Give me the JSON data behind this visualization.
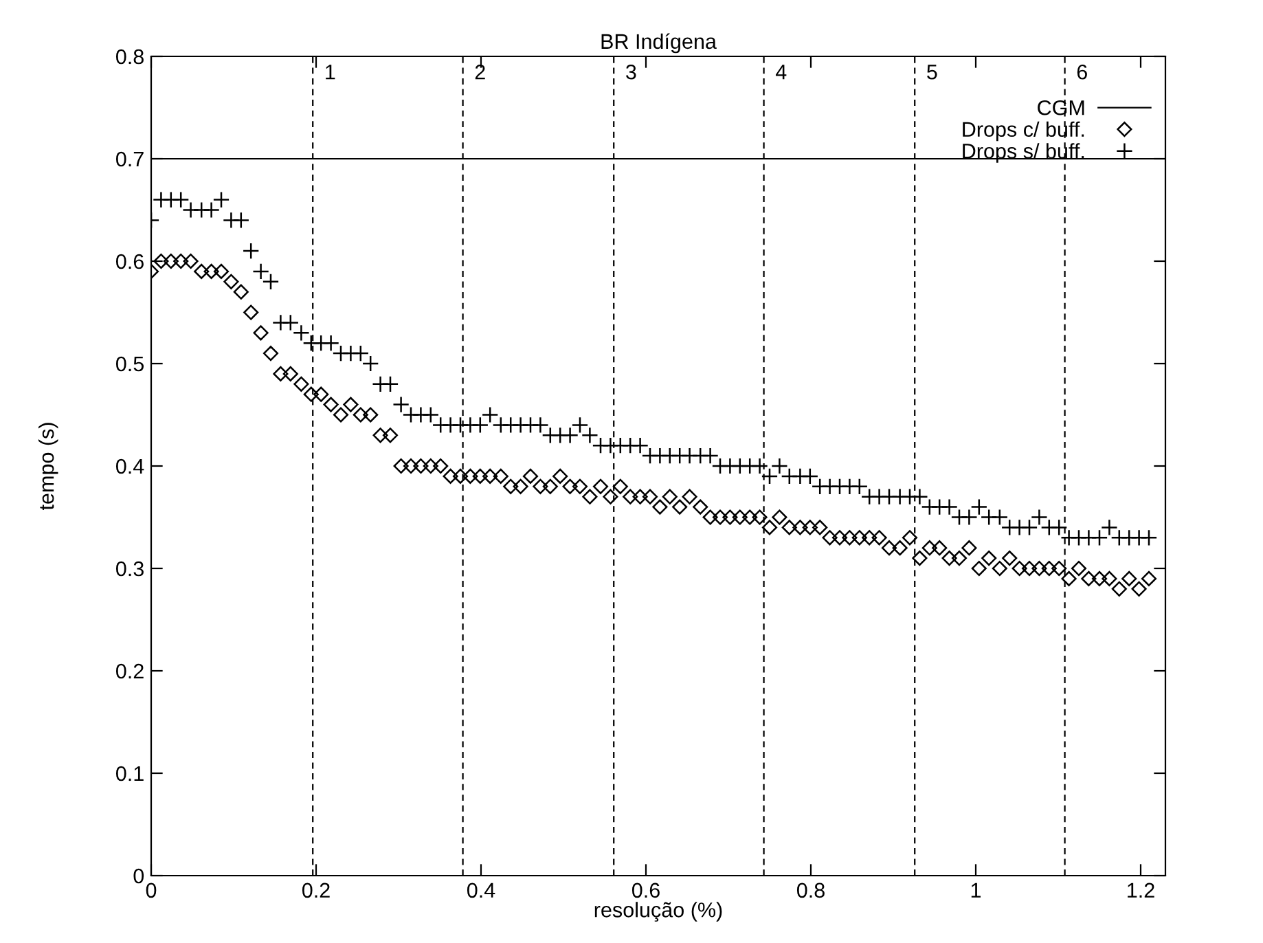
{
  "chart_data": {
    "type": "scatter",
    "title": "BR Indígena",
    "xlabel": "resolução (%)",
    "ylabel": "tempo (s)",
    "x": [
      0.0,
      0.012,
      0.024,
      0.036,
      0.048,
      0.061,
      0.073,
      0.085,
      0.097,
      0.109,
      0.121,
      0.133,
      0.145,
      0.157,
      0.169,
      0.182,
      0.194,
      0.206,
      0.218,
      0.23,
      0.242,
      0.254,
      0.266,
      0.278,
      0.29,
      0.303,
      0.315,
      0.327,
      0.339,
      0.351,
      0.363,
      0.375,
      0.387,
      0.399,
      0.411,
      0.424,
      0.436,
      0.448,
      0.46,
      0.472,
      0.484,
      0.496,
      0.508,
      0.52,
      0.532,
      0.545,
      0.557,
      0.569,
      0.581,
      0.593,
      0.605,
      0.617,
      0.629,
      0.641,
      0.653,
      0.666,
      0.678,
      0.69,
      0.702,
      0.714,
      0.726,
      0.738,
      0.75,
      0.762,
      0.774,
      0.787,
      0.799,
      0.811,
      0.823,
      0.835,
      0.847,
      0.859,
      0.871,
      0.883,
      0.895,
      0.908,
      0.92,
      0.932,
      0.944,
      0.956,
      0.968,
      0.98,
      0.992,
      1.004,
      1.016,
      1.029,
      1.041,
      1.053,
      1.065,
      1.077,
      1.089,
      1.101,
      1.113,
      1.125,
      1.137,
      1.15,
      1.162,
      1.174,
      1.186,
      1.198,
      1.21
    ],
    "series": [
      {
        "name": "CGM",
        "type": "line",
        "color": "#000000",
        "x": [
          0.0,
          1.23
        ],
        "values": [
          0.7,
          0.7
        ],
        "marker": "none"
      },
      {
        "name": "Drops c/ buff.",
        "color": "#000000",
        "marker": "diamond",
        "values": [
          0.59,
          0.6,
          0.6,
          0.6,
          0.6,
          0.59,
          0.59,
          0.59,
          0.58,
          0.57,
          0.55,
          0.53,
          0.51,
          0.49,
          0.49,
          0.48,
          0.47,
          0.47,
          0.46,
          0.45,
          0.46,
          0.45,
          0.45,
          0.43,
          0.43,
          0.4,
          0.4,
          0.4,
          0.4,
          0.4,
          0.39,
          0.39,
          0.39,
          0.39,
          0.39,
          0.39,
          0.38,
          0.38,
          0.39,
          0.38,
          0.38,
          0.39,
          0.38,
          0.38,
          0.37,
          0.38,
          0.37,
          0.38,
          0.37,
          0.37,
          0.37,
          0.36,
          0.37,
          0.36,
          0.37,
          0.36,
          0.35,
          0.35,
          0.35,
          0.35,
          0.35,
          0.35,
          0.34,
          0.35,
          0.34,
          0.34,
          0.34,
          0.34,
          0.33,
          0.33,
          0.33,
          0.33,
          0.33,
          0.33,
          0.32,
          0.32,
          0.33,
          0.31,
          0.32,
          0.32,
          0.31,
          0.31,
          0.32,
          0.3,
          0.31,
          0.3,
          0.31,
          0.3,
          0.3,
          0.3,
          0.3,
          0.3,
          0.29,
          0.3,
          0.29,
          0.29,
          0.29,
          0.28,
          0.29,
          0.28,
          0.29
        ]
      },
      {
        "name": "Drops s/ buff.",
        "color": "#000000",
        "marker": "cross",
        "values": [
          0.64,
          0.66,
          0.66,
          0.66,
          0.65,
          0.65,
          0.65,
          0.66,
          0.64,
          0.64,
          0.61,
          0.59,
          0.58,
          0.54,
          0.54,
          0.53,
          0.52,
          0.52,
          0.52,
          0.51,
          0.51,
          0.51,
          0.5,
          0.48,
          0.48,
          0.46,
          0.45,
          0.45,
          0.45,
          0.44,
          0.44,
          0.44,
          0.44,
          0.44,
          0.45,
          0.44,
          0.44,
          0.44,
          0.44,
          0.44,
          0.43,
          0.43,
          0.43,
          0.44,
          0.43,
          0.42,
          0.42,
          0.42,
          0.42,
          0.42,
          0.41,
          0.41,
          0.41,
          0.41,
          0.41,
          0.41,
          0.41,
          0.4,
          0.4,
          0.4,
          0.4,
          0.4,
          0.39,
          0.4,
          0.39,
          0.39,
          0.39,
          0.38,
          0.38,
          0.38,
          0.38,
          0.38,
          0.37,
          0.37,
          0.37,
          0.37,
          0.37,
          0.37,
          0.36,
          0.36,
          0.36,
          0.35,
          0.35,
          0.36,
          0.35,
          0.35,
          0.34,
          0.34,
          0.34,
          0.35,
          0.34,
          0.34,
          0.33,
          0.33,
          0.33,
          0.33,
          0.34,
          0.33,
          0.33,
          0.33,
          0.33
        ]
      }
    ],
    "ref_lines": [
      {
        "axis": "x",
        "value": 0.196,
        "line_style": "dashed"
      },
      {
        "axis": "x",
        "value": 0.378,
        "line_style": "dashed"
      },
      {
        "axis": "x",
        "value": 0.561,
        "line_style": "dashed"
      },
      {
        "axis": "x",
        "value": 0.743,
        "line_style": "dashed"
      },
      {
        "axis": "x",
        "value": 0.926,
        "line_style": "dashed"
      },
      {
        "axis": "x",
        "value": 1.108,
        "line_style": "dashed"
      }
    ],
    "annotations": [
      {
        "text": "1",
        "x": 0.196,
        "y": 0.8
      },
      {
        "text": "2",
        "x": 0.378,
        "y": 0.8
      },
      {
        "text": "3",
        "x": 0.561,
        "y": 0.8
      },
      {
        "text": "4",
        "x": 0.743,
        "y": 0.8
      },
      {
        "text": "5",
        "x": 0.926,
        "y": 0.8
      },
      {
        "text": "6",
        "x": 1.108,
        "y": 0.8
      }
    ],
    "xlim": [
      0,
      1.23
    ],
    "xticks": [
      0,
      0.2,
      0.4,
      0.6,
      0.8,
      1,
      1.2
    ],
    "ylim": [
      0,
      0.8
    ],
    "yticks": [
      0,
      0.1,
      0.2,
      0.3,
      0.4,
      0.5,
      0.6,
      0.7,
      0.8
    ],
    "grid": false,
    "legend": "top right"
  }
}
